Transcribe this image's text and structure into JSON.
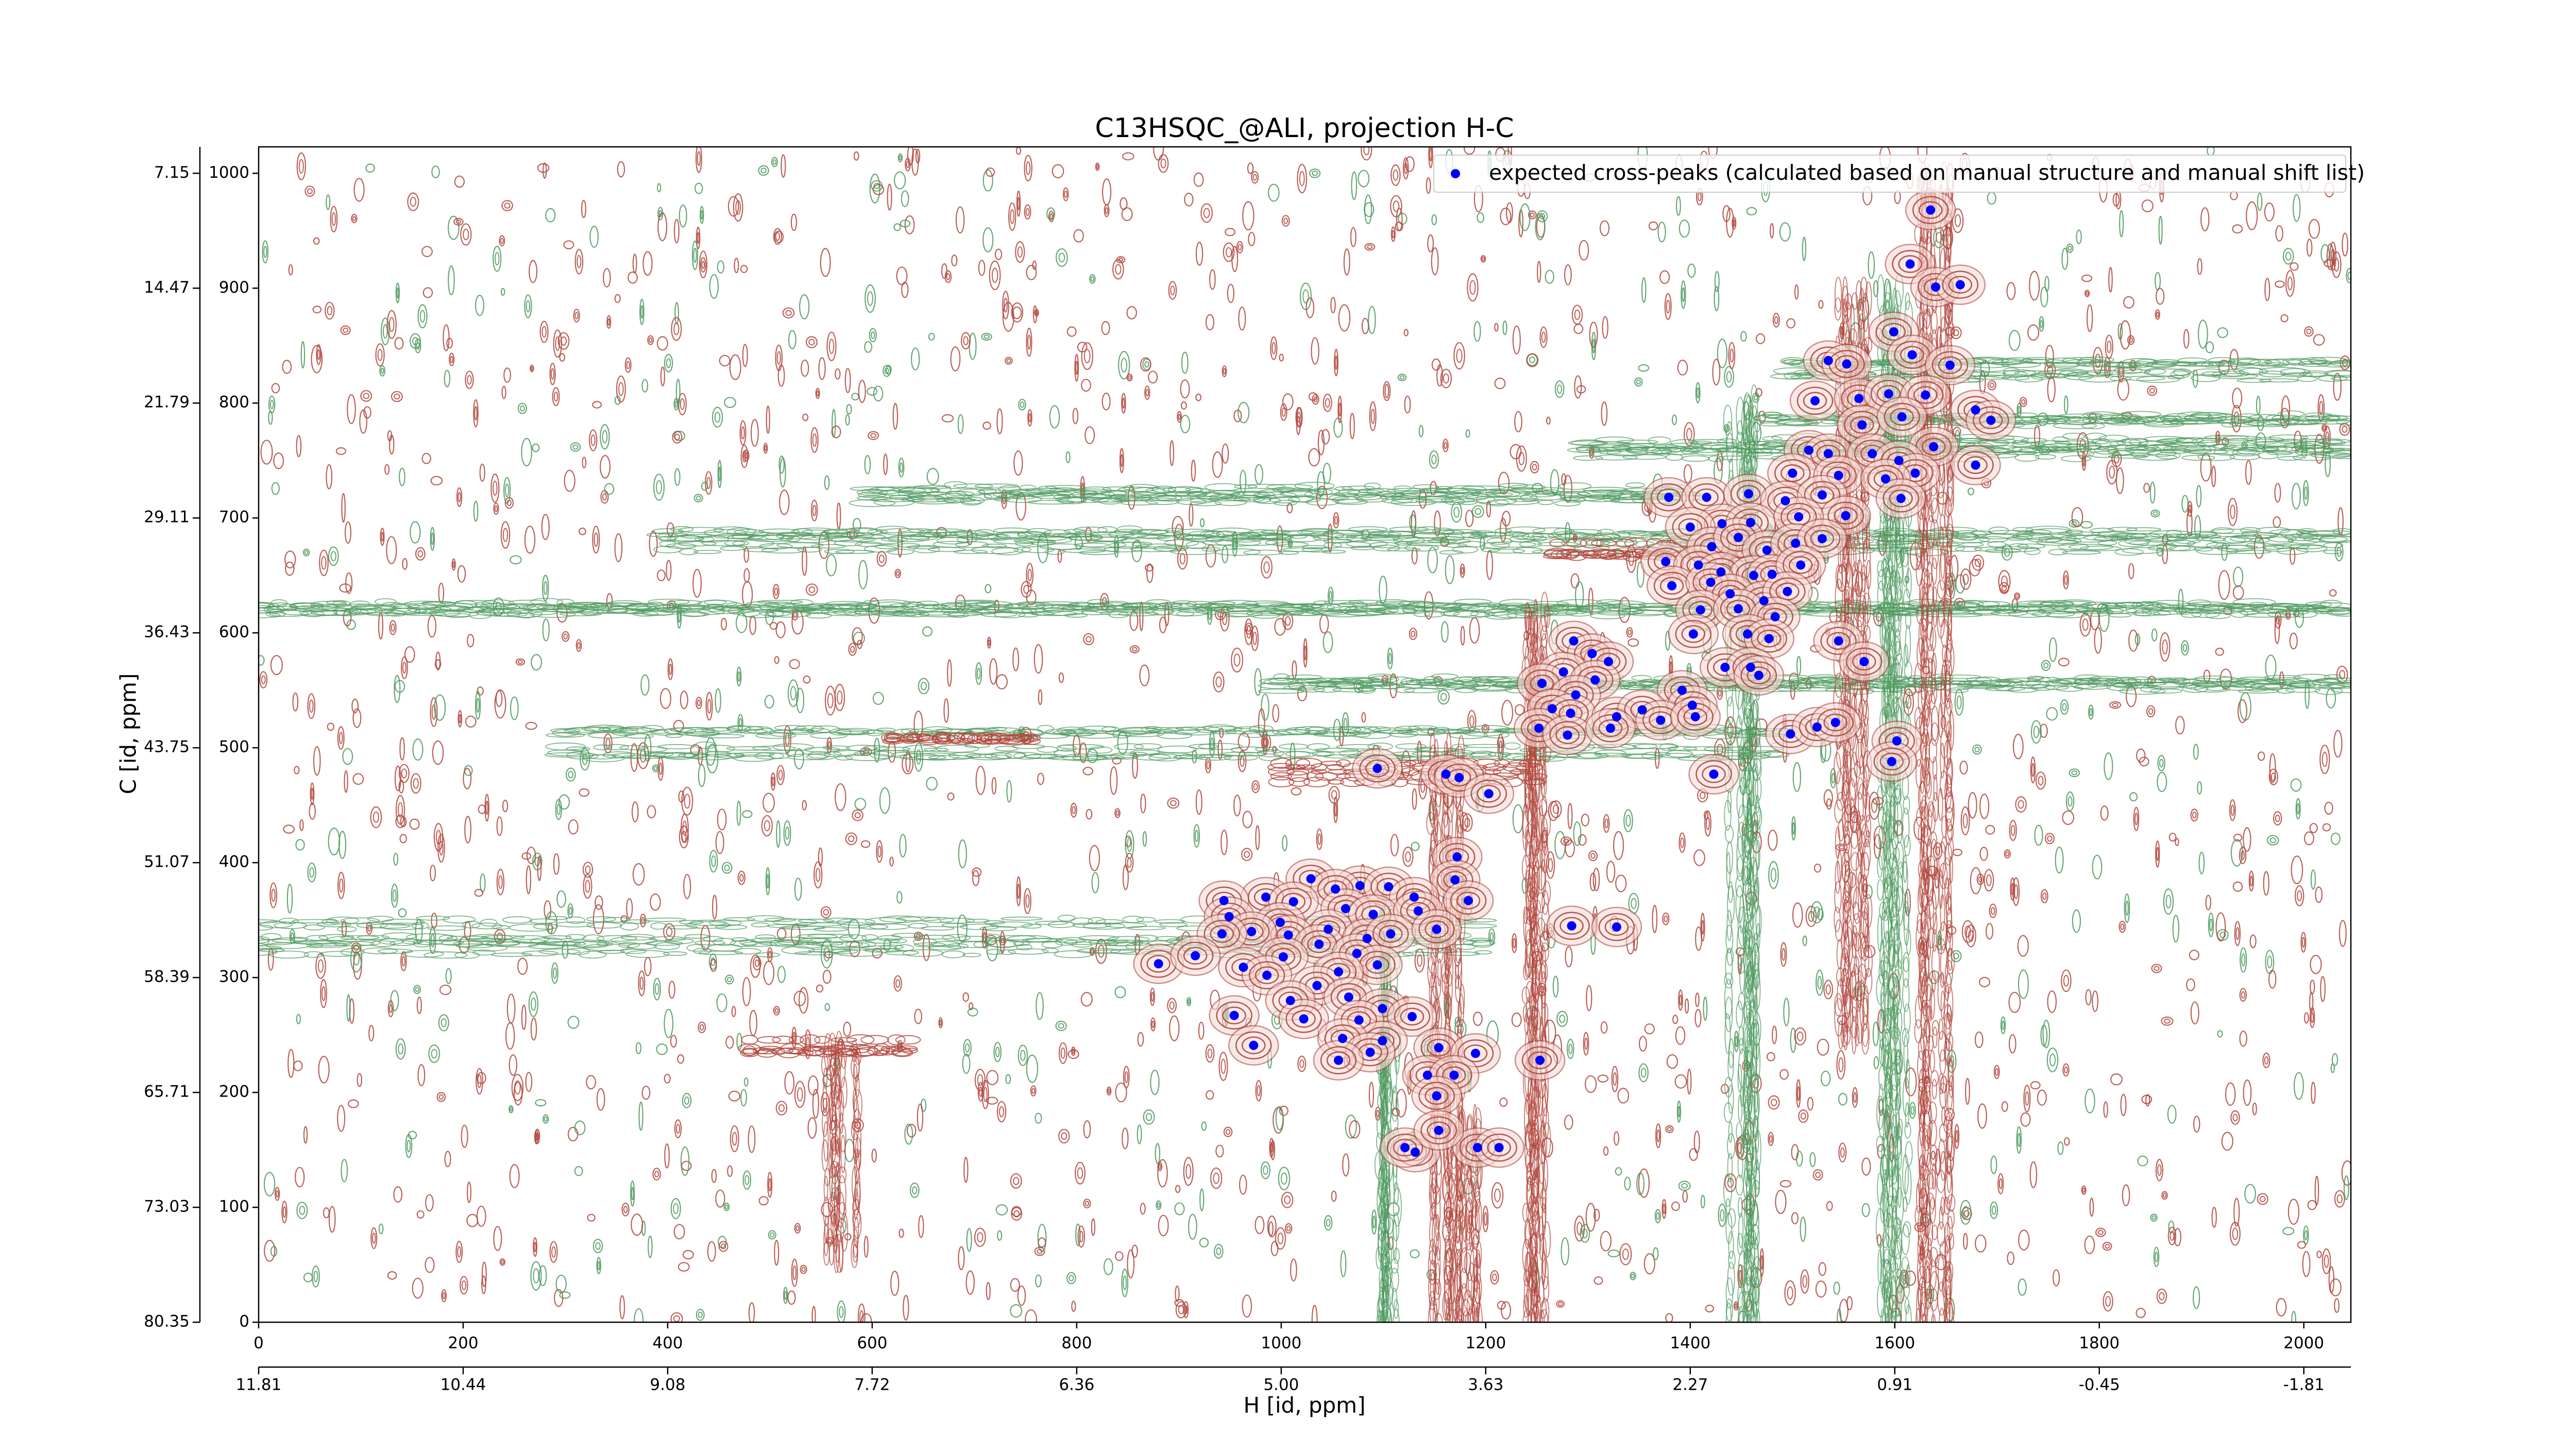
{
  "chart_data": {
    "type": "scatter",
    "title": "C13HSQC_@ALI, projection H-C",
    "xlabel": "H [id, ppm]",
    "ylabel": "C [id, ppm]",
    "legend": "upper right",
    "xlim": [
      0,
      2046
    ],
    "ylim": [
      0,
      1023
    ],
    "xticks": [
      0,
      200,
      400,
      600,
      800,
      1000,
      1200,
      1400,
      1600,
      1800,
      2000
    ],
    "yticks": [
      0,
      100,
      200,
      300,
      400,
      500,
      600,
      700,
      800,
      900,
      1000
    ],
    "x2ticks": [
      {
        "value": 0,
        "label": "11.81"
      },
      {
        "value": 200,
        "label": "10.44"
      },
      {
        "value": 400,
        "label": "9.08"
      },
      {
        "value": 600,
        "label": "7.72"
      },
      {
        "value": 800,
        "label": "6.36"
      },
      {
        "value": 1000,
        "label": "5.00"
      },
      {
        "value": 1200,
        "label": "3.63"
      },
      {
        "value": 1400,
        "label": "2.27"
      },
      {
        "value": 1600,
        "label": "0.91"
      },
      {
        "value": 1800,
        "label": "-0.45"
      },
      {
        "value": 2000,
        "label": "-1.81"
      }
    ],
    "y2ticks": [
      {
        "value": 0,
        "label": "80.35"
      },
      {
        "value": 100,
        "label": "73.03"
      },
      {
        "value": 200,
        "label": "65.71"
      },
      {
        "value": 300,
        "label": "58.39"
      },
      {
        "value": 400,
        "label": "51.07"
      },
      {
        "value": 500,
        "label": "43.75"
      },
      {
        "value": 600,
        "label": "36.43"
      },
      {
        "value": 700,
        "label": "29.11"
      },
      {
        "value": 800,
        "label": "21.79"
      },
      {
        "value": 900,
        "label": "14.47"
      },
      {
        "value": 1000,
        "label": "7.15"
      }
    ],
    "series": [
      {
        "name": "expected cross-peaks (calculated based on manual structure and manual shift list)",
        "color": "#0000ff",
        "x": [
          1635,
          1615,
          1640,
          1664,
          1599,
          1617,
          1535,
          1553,
          1654,
          1522,
          1565,
          1594,
          1630,
          1679,
          1694,
          1568,
          1607,
          1638,
          1516,
          1535,
          1578,
          1604,
          1620,
          1679,
          1500,
          1545,
          1591,
          1379,
          1416,
          1457,
          1493,
          1529,
          1552,
          1606,
          1431,
          1459,
          1506,
          1400,
          1421,
          1447,
          1475,
          1503,
          1529,
          1376,
          1408,
          1430,
          1462,
          1480,
          1508,
          1382,
          1420,
          1439,
          1472,
          1495,
          1410,
          1447,
          1483,
          1456,
          1403,
          1477,
          1545,
          1286,
          1304,
          1320,
          1434,
          1459,
          1570,
          1276,
          1307,
          1255,
          1288,
          1392,
          1402,
          1467,
          1265,
          1283,
          1328,
          1353,
          1371,
          1405,
          1252,
          1280,
          1322,
          1498,
          1524,
          1542,
          1602,
          1597,
          1094,
          1161,
          1174,
          1423,
          1203,
          1172,
          1170,
          1183,
          1029,
          1077,
          1053,
          1105,
          1130,
          985,
          1012,
          1063,
          1090,
          944,
          949,
          1134,
          999,
          1046,
          1084,
          1007,
          1107,
          1152,
          971,
          942,
          1037,
          1074,
          1002,
          1094,
          1056,
          880,
          916,
          963,
          986,
          1035,
          1009,
          1066,
          1099,
          954,
          1022,
          1076,
          1128,
          1099,
          1060,
          973,
          1087,
          1154,
          1190,
          1056,
          1253,
          1143,
          1169,
          1152,
          1131,
          1121,
          1192,
          1213,
          1154,
          1284,
          1328
        ],
        "y": [
          968,
          921,
          901,
          903,
          862,
          842,
          837,
          834,
          833,
          802,
          804,
          808,
          807,
          794,
          785,
          781,
          788,
          762,
          759,
          756,
          756,
          750,
          739,
          746,
          739,
          737,
          734,
          718,
          718,
          721,
          715,
          720,
          702,
          717,
          695,
          696,
          701,
          692,
          675,
          683,
          672,
          678,
          682,
          662,
          659,
          653,
          650,
          651,
          659,
          641,
          644,
          634,
          628,
          636,
          620,
          621,
          614,
          599,
          599,
          595,
          593,
          593,
          582,
          575,
          570,
          570,
          575,
          566,
          559,
          556,
          546,
          550,
          537,
          563,
          534,
          530,
          527,
          533,
          524,
          527,
          517,
          511,
          517,
          512,
          518,
          522,
          506,
          488,
          482,
          477,
          474,
          477,
          460,
          405,
          385,
          367,
          386,
          380,
          377,
          379,
          370,
          370,
          366,
          360,
          355,
          367,
          353,
          358,
          348,
          342,
          334,
          337,
          338,
          342,
          340,
          338,
          329,
          321,
          318,
          311,
          305,
          312,
          319,
          309,
          302,
          293,
          280,
          283,
          273,
          267,
          264,
          263,
          266,
          245,
          247,
          241,
          235,
          239,
          234,
          228,
          228,
          215,
          215,
          197,
          148,
          152,
          152,
          152,
          167,
          345,
          344
        ]
      }
    ]
  }
}
